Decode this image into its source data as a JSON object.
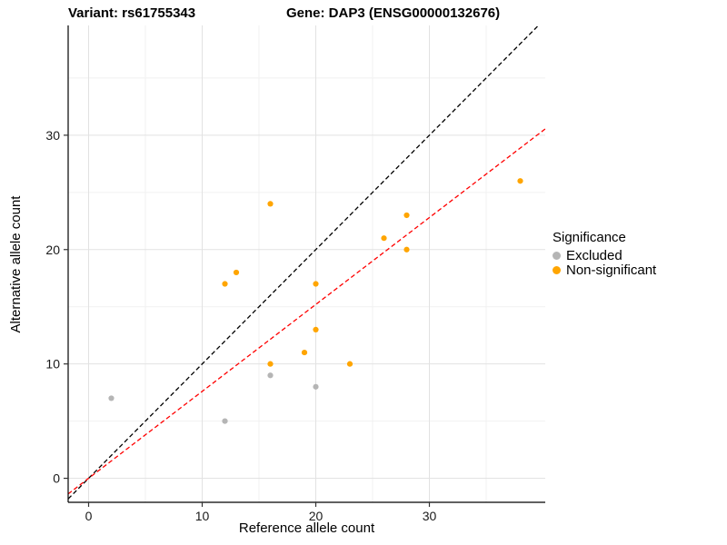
{
  "titles": {
    "left": "Variant: rs61755343",
    "right": "Gene: DAP3 (ENSG00000132676)"
  },
  "chart_data": {
    "type": "scatter",
    "xlabel": "Reference allele count",
    "ylabel": "Alternative allele count",
    "xlim": [
      -1.8,
      40.2
    ],
    "ylim": [
      -2.1,
      39.6
    ],
    "xticks": [
      0,
      10,
      20,
      30
    ],
    "yticks": [
      0,
      10,
      20,
      30
    ],
    "minor_ticks": [
      5,
      15,
      25,
      35
    ],
    "grid": true,
    "colors": {
      "excluded": "#b5b5b5",
      "non_significant": "#FFA500",
      "identity_line": "#000000",
      "fit_line": "#FF0000",
      "major_grid": "#e2e2e2",
      "minor_grid": "#f1f1f1",
      "axis_line": "#000000"
    },
    "legend": {
      "title": "Significance",
      "position": "right",
      "entries": [
        {
          "label": "Excluded",
          "color": "#b5b5b5"
        },
        {
          "label": "Non-significant",
          "color": "#FFA500"
        }
      ]
    },
    "series": [
      {
        "name": "Excluded",
        "color": "#b5b5b5",
        "points": [
          [
            2,
            7
          ],
          [
            12,
            5
          ],
          [
            16,
            9
          ],
          [
            20,
            8
          ]
        ]
      },
      {
        "name": "Non-significant",
        "color": "#FFA500",
        "points": [
          [
            12,
            17
          ],
          [
            13,
            18
          ],
          [
            16,
            24
          ],
          [
            16,
            10
          ],
          [
            19,
            11
          ],
          [
            20,
            17
          ],
          [
            20,
            13
          ],
          [
            23,
            10
          ],
          [
            26,
            21
          ],
          [
            28,
            23
          ],
          [
            28,
            20
          ],
          [
            38,
            26
          ]
        ]
      }
    ],
    "lines": [
      {
        "name": "identity",
        "slope": 1,
        "intercept": 0,
        "color": "#000000",
        "dash": "5,3"
      },
      {
        "name": "fit",
        "slope": 0.76,
        "intercept": 0,
        "color": "#FF0000",
        "dash": "5,3"
      }
    ]
  }
}
